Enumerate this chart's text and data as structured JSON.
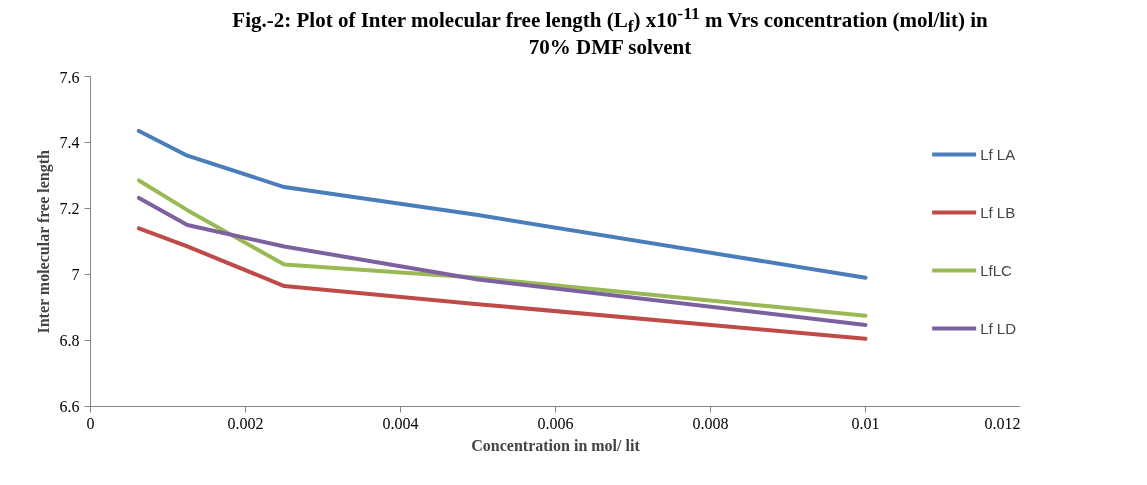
{
  "chart_data": {
    "type": "line",
    "title": "Fig.-2: Plot of Inter molecular free length (L$_{f}$) x10$^{-11}$ m  Vrs concentration (mol/lit) in 70% DMF solvent",
    "xlabel": "Concentration in mol/ lit",
    "ylabel": "Inter molecular free length",
    "x": [
      0.000625,
      0.00125,
      0.0025,
      0.005,
      0.01
    ],
    "series": [
      {
        "name": "Lf LA",
        "color": "#4a7ebb",
        "values": [
          7.435,
          7.36,
          7.265,
          7.18,
          6.99
        ]
      },
      {
        "name": "Lf LB",
        "color": "#be4b48",
        "values": [
          7.14,
          7.085,
          6.965,
          6.91,
          6.805
        ]
      },
      {
        "name": "LfLC",
        "color": "#98b954",
        "values": [
          7.285,
          7.195,
          7.03,
          6.99,
          6.875
        ]
      },
      {
        "name": "Lf LD",
        "color": "#7d60a0",
        "values": [
          7.232,
          7.15,
          7.085,
          6.985,
          6.847
        ]
      }
    ],
    "xlim": [
      0,
      0.012
    ],
    "xticks": [
      0,
      {
        "value": 0.002,
        "label": "0.002"
      },
      {
        "value": 0.004,
        "label": "0.004"
      },
      {
        "value": 0.006,
        "label": "0.006"
      },
      {
        "value": 0.008,
        "label": "0.008"
      },
      {
        "value": 0.01,
        "label": "0.01"
      },
      {
        "value": 0.012,
        "label": "0.012"
      }
    ],
    "ylim": [
      6.6,
      7.6
    ],
    "yticks": [
      6.6,
      6.8,
      7,
      7.2,
      7.4,
      7.6
    ],
    "grid": false,
    "legend": "right",
    "marker": "none",
    "line_style": "solid"
  }
}
